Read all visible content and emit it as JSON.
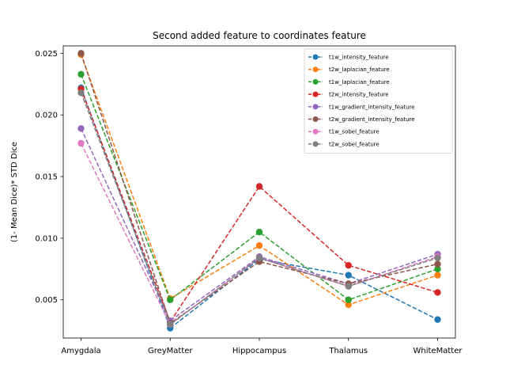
{
  "chart_data": {
    "type": "line",
    "title": "Second added feature to coordinates feature",
    "xlabel": "",
    "ylabel": "(1- Mean Dice)* STD Dice",
    "categories": [
      "Amygdala",
      "GreyMatter",
      "Hippocampus",
      "Thalamus",
      "WhiteMatter"
    ],
    "ylim": [
      0.0019,
      0.0256
    ],
    "yticks": [
      0.005,
      0.01,
      0.015,
      0.02,
      0.025
    ],
    "ytick_labels": [
      "0.005",
      "0.010",
      "0.015",
      "0.020",
      "0.025"
    ],
    "grid": false,
    "legend_position": "top-right",
    "line_style": "dashed",
    "marker": "circle",
    "series": [
      {
        "name": "t1w_intensity_feature",
        "color": "#1f77b4",
        "values": [
          0.0222,
          0.0027,
          0.0083,
          0.007,
          0.0034
        ]
      },
      {
        "name": "t2w_laplacian_feature",
        "color": "#ff7f0e",
        "values": [
          0.0249,
          0.0051,
          0.0094,
          0.0046,
          0.007
        ]
      },
      {
        "name": "t1w_laplacian_feature",
        "color": "#2ca02c",
        "values": [
          0.0233,
          0.005,
          0.0105,
          0.005,
          0.0075
        ]
      },
      {
        "name": "t2w_intensity_feature",
        "color": "#d62728",
        "values": [
          0.0221,
          0.0032,
          0.0142,
          0.0078,
          0.0056
        ]
      },
      {
        "name": "t1w_gradient_intensity_feature",
        "color": "#9467bd",
        "values": [
          0.0189,
          0.0033,
          0.0085,
          0.0063,
          0.0087
        ]
      },
      {
        "name": "t2w_gradient_intensity_feature",
        "color": "#8c564b",
        "values": [
          0.025,
          0.0031,
          0.0081,
          0.0063,
          0.0079
        ]
      },
      {
        "name": "t1w_sobel_feature",
        "color": "#e377c2",
        "values": [
          0.0177,
          0.003,
          0.0084,
          0.0061,
          0.0085
        ]
      },
      {
        "name": "t2w_sobel_feature",
        "color": "#7f7f7f",
        "values": [
          0.0218,
          0.003,
          0.0084,
          0.0061,
          0.0084
        ]
      }
    ]
  }
}
